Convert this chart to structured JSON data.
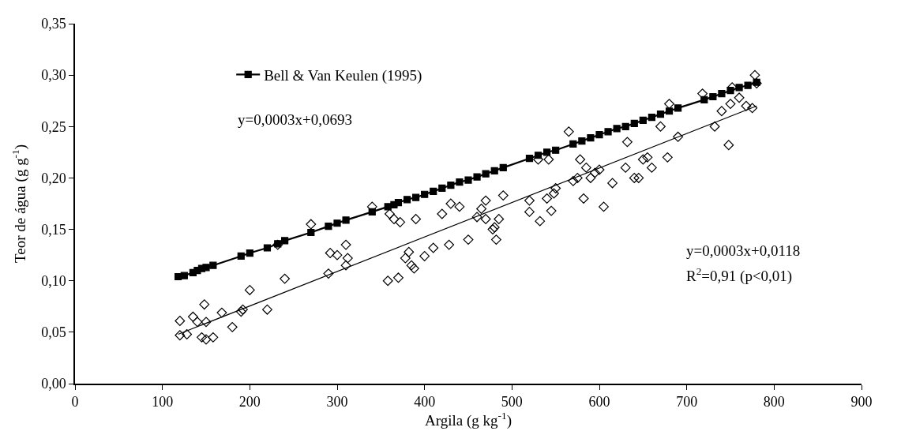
{
  "chart_data": {
    "type": "scatter",
    "xlabel": "Argila (g kg$^{-1}$)",
    "ylabel": "Teor de água (g g$^{-1}$)",
    "xlim": [
      0,
      900
    ],
    "xticks": [
      0,
      100,
      200,
      300,
      400,
      500,
      600,
      700,
      800,
      900
    ],
    "ylim": [
      0,
      0.35
    ],
    "yticks": [
      {
        "value": 0,
        "label": "0,00"
      },
      {
        "value": 0.05,
        "label": "0,05"
      },
      {
        "value": 0.1,
        "label": "0,10"
      },
      {
        "value": 0.15,
        "label": "0,15"
      },
      {
        "value": 0.2,
        "label": "0,20"
      },
      {
        "value": 0.25,
        "label": "0,25"
      },
      {
        "value": 0.3,
        "label": "0,30"
      },
      {
        "value": 0.35,
        "label": "0,35"
      }
    ],
    "legend": "top left",
    "series": [
      {
        "marker": "diamond",
        "color": "#000000",
        "x": [
          120,
          120,
          128,
          135,
          140,
          145,
          148,
          150,
          150,
          158,
          168,
          180,
          190,
          192,
          200,
          220,
          232,
          240,
          270,
          290,
          292,
          300,
          310,
          310,
          312,
          340,
          358,
          360,
          365,
          370,
          372,
          378,
          382,
          385,
          388,
          390,
          400,
          410,
          420,
          428,
          430,
          440,
          450,
          460,
          465,
          470,
          470,
          478,
          480,
          482,
          485,
          490,
          520,
          520,
          530,
          532,
          540,
          542,
          545,
          548,
          550,
          565,
          570,
          575,
          578,
          582,
          585,
          590,
          595,
          600,
          605,
          615,
          630,
          632,
          640,
          645,
          650,
          655,
          660,
          670,
          678,
          680,
          690,
          718,
          732,
          740,
          748,
          750,
          752,
          760,
          768,
          775,
          778,
          780
        ],
        "values": [
          0.061,
          0.047,
          0.048,
          0.065,
          0.06,
          0.045,
          0.077,
          0.06,
          0.043,
          0.045,
          0.069,
          0.055,
          0.07,
          0.072,
          0.091,
          0.072,
          0.135,
          0.102,
          0.155,
          0.107,
          0.127,
          0.125,
          0.135,
          0.115,
          0.122,
          0.172,
          0.1,
          0.165,
          0.16,
          0.103,
          0.157,
          0.122,
          0.128,
          0.115,
          0.112,
          0.16,
          0.124,
          0.132,
          0.165,
          0.135,
          0.175,
          0.172,
          0.14,
          0.162,
          0.17,
          0.178,
          0.16,
          0.15,
          0.152,
          0.14,
          0.16,
          0.183,
          0.178,
          0.167,
          0.218,
          0.158,
          0.18,
          0.218,
          0.168,
          0.185,
          0.19,
          0.245,
          0.197,
          0.2,
          0.218,
          0.18,
          0.21,
          0.2,
          0.205,
          0.208,
          0.172,
          0.195,
          0.21,
          0.235,
          0.2,
          0.2,
          0.218,
          0.22,
          0.21,
          0.25,
          0.22,
          0.272,
          0.24,
          0.282,
          0.25,
          0.265,
          0.232,
          0.272,
          0.288,
          0.278,
          0.27,
          0.268,
          0.3,
          0.292
        ]
      },
      {
        "type": "line",
        "marker": "none",
        "color": "#000000",
        "x": [
          118,
          780
        ],
        "values": [
          0.048,
          0.27
        ]
      },
      {
        "type": "line",
        "name": "Bell & Van Keulen (1995)",
        "marker": "square",
        "color": "#000000",
        "x": [
          118,
          125,
          135,
          140,
          145,
          150,
          158,
          190,
          200,
          220,
          232,
          240,
          270,
          290,
          300,
          310,
          340,
          358,
          365,
          370,
          380,
          390,
          400,
          410,
          420,
          430,
          440,
          450,
          460,
          470,
          480,
          490,
          520,
          530,
          540,
          550,
          570,
          580,
          590,
          600,
          610,
          620,
          630,
          640,
          650,
          660,
          670,
          680,
          690,
          720,
          730,
          740,
          750,
          760,
          770,
          780
        ],
        "values": [
          0.104,
          0.105,
          0.108,
          0.11,
          0.112,
          0.113,
          0.115,
          0.124,
          0.127,
          0.132,
          0.136,
          0.139,
          0.147,
          0.153,
          0.156,
          0.159,
          0.167,
          0.172,
          0.174,
          0.176,
          0.179,
          0.181,
          0.184,
          0.187,
          0.19,
          0.193,
          0.196,
          0.198,
          0.201,
          0.204,
          0.207,
          0.21,
          0.219,
          0.222,
          0.225,
          0.227,
          0.233,
          0.236,
          0.239,
          0.242,
          0.245,
          0.248,
          0.25,
          0.253,
          0.256,
          0.259,
          0.262,
          0.265,
          0.268,
          0.276,
          0.279,
          0.282,
          0.285,
          0.288,
          0.29,
          0.293
        ]
      }
    ],
    "annotations": [
      "y=0,0003x+0,0693",
      "y=0,0003x+0,0118",
      "R$^{2}$=0,91 (p<0,01)"
    ]
  }
}
